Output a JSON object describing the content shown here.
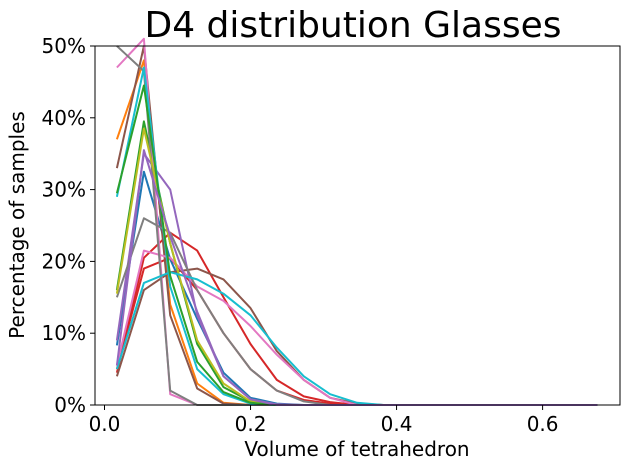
{
  "chart_data": {
    "type": "line",
    "title": "D4 distribution Glasses",
    "xlabel": "Volume of tetrahedron",
    "ylabel": "Percentage of samples",
    "xlim": [
      -0.013,
      0.706
    ],
    "ylim": [
      0,
      50
    ],
    "xticks": [
      0.0,
      0.2,
      0.4,
      0.6
    ],
    "xtick_labels": [
      "0.0",
      "0.2",
      "0.4",
      "0.6"
    ],
    "yticks": [
      0,
      10,
      20,
      30,
      40,
      50
    ],
    "ytick_labels": [
      "0%",
      "10%",
      "20%",
      "30%",
      "40%",
      "50%"
    ],
    "grid": false,
    "legend": "none",
    "x": [
      0.017,
      0.054,
      0.09,
      0.127,
      0.163,
      0.2,
      0.236,
      0.273,
      0.309,
      0.346,
      0.382,
      0.419,
      0.455,
      0.492,
      0.528,
      0.565,
      0.601,
      0.638,
      0.675
    ],
    "series": [
      {
        "color": "#1f77b4",
        "values": [
          8.3,
          32.5,
          20.3,
          12.0,
          4.5,
          1.0,
          0.2,
          0,
          0,
          0,
          0,
          0,
          0,
          0,
          0,
          0,
          0,
          0,
          0
        ]
      },
      {
        "color": "#ff7f0e",
        "values": [
          37.0,
          48.0,
          14.0,
          3.0,
          0.3,
          0,
          0,
          0,
          0,
          0,
          0,
          0,
          0,
          0,
          0,
          0,
          0,
          0,
          0
        ]
      },
      {
        "color": "#2ca02c",
        "values": [
          16.0,
          39.5,
          22.5,
          8.5,
          2.5,
          0.5,
          0,
          0,
          0,
          0,
          0,
          0,
          0,
          0,
          0,
          0,
          0,
          0,
          0
        ]
      },
      {
        "color": "#d62728",
        "values": [
          5.0,
          19.0,
          20.5,
          16.0,
          10.0,
          5.0,
          2.0,
          0.7,
          0.2,
          0,
          0,
          0,
          0,
          0,
          0,
          0,
          0,
          0,
          0
        ]
      },
      {
        "color": "#d62728",
        "values": [
          4.5,
          20.5,
          24.0,
          21.5,
          15.0,
          8.5,
          3.5,
          1.2,
          0.4,
          0,
          0,
          0,
          0,
          0,
          0,
          0,
          0,
          0,
          0
        ]
      },
      {
        "color": "#9467bd",
        "values": [
          9.0,
          35.0,
          30.0,
          12.5,
          4.0,
          0.8,
          0.1,
          0,
          0,
          0,
          0,
          0,
          0,
          0,
          0,
          0,
          0,
          0,
          0
        ]
      },
      {
        "color": "#8c564b",
        "values": [
          33.0,
          50.0,
          12.5,
          2.3,
          0.2,
          0,
          0,
          0,
          0,
          0,
          0,
          0,
          0,
          0,
          0,
          0,
          0,
          0,
          0
        ]
      },
      {
        "color": "#8c564b",
        "values": [
          4.0,
          16.0,
          18.5,
          19.0,
          17.5,
          13.5,
          7.5,
          3.5,
          1.0,
          0.2,
          0,
          0,
          0,
          0,
          0,
          0,
          0,
          0,
          0
        ]
      },
      {
        "color": "#e377c2",
        "values": [
          47.0,
          51.0,
          1.5,
          0,
          0,
          0,
          0,
          0,
          0,
          0,
          0,
          0,
          0,
          0,
          0,
          0,
          0,
          0,
          0
        ]
      },
      {
        "color": "#e377c2",
        "values": [
          5.5,
          21.5,
          20.5,
          16.5,
          14.5,
          11.0,
          7.0,
          3.5,
          1.0,
          0,
          0,
          0,
          0,
          0,
          0,
          0,
          0,
          0,
          0
        ]
      },
      {
        "color": "#7f7f7f",
        "values": [
          50.0,
          46.5,
          2.0,
          0,
          0,
          0,
          0,
          0,
          0,
          0,
          0,
          0,
          0,
          0,
          0,
          0,
          0,
          0,
          0
        ]
      },
      {
        "color": "#7f7f7f",
        "values": [
          15.0,
          26.0,
          24.0,
          16.0,
          10.0,
          5.0,
          2.0,
          0.5,
          0,
          0,
          0,
          0,
          0,
          0,
          0,
          0,
          0,
          0,
          0
        ]
      },
      {
        "color": "#bcbd22",
        "values": [
          15.5,
          38.5,
          22.5,
          9.0,
          3.0,
          0.5,
          0,
          0,
          0,
          0,
          0,
          0,
          0,
          0,
          0,
          0,
          0,
          0,
          0
        ]
      },
      {
        "color": "#17becf",
        "values": [
          29.0,
          47.0,
          16.5,
          5.0,
          1.5,
          0.2,
          0,
          0,
          0,
          0,
          0,
          0,
          0,
          0,
          0,
          0,
          0,
          0,
          0
        ]
      },
      {
        "color": "#17becf",
        "values": [
          5.0,
          17.0,
          18.5,
          17.5,
          15.5,
          12.5,
          8.0,
          4.0,
          1.5,
          0.3,
          0,
          0,
          0,
          0,
          0,
          0,
          0,
          0,
          0
        ]
      },
      {
        "color": "#2ca02c",
        "values": [
          29.5,
          44.5,
          18.0,
          6.0,
          1.8,
          0.3,
          0,
          0,
          0,
          0,
          0,
          0,
          0,
          0,
          0,
          0,
          0,
          0,
          0
        ]
      },
      {
        "color": "#9467bd",
        "values": [
          5.5,
          35.5,
          23.5,
          13.0,
          4.0,
          0.8,
          0,
          0,
          0,
          0,
          0,
          0,
          0,
          0,
          0,
          0,
          0,
          0,
          0
        ]
      }
    ]
  }
}
